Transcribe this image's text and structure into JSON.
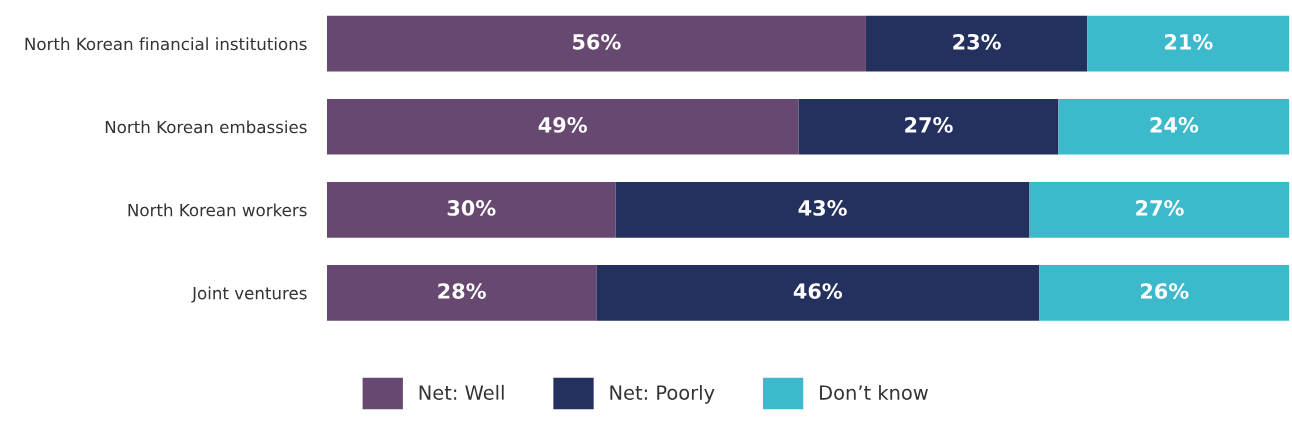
{
  "chart_data": {
    "type": "bar",
    "orientation": "horizontal",
    "stacked": true,
    "categories": [
      "North Korean financial institutions",
      "North Korean embassies",
      "North Korean workers",
      "Joint ventures"
    ],
    "series": [
      {
        "name": "Net: Well",
        "color": "#674870",
        "values": [
          56,
          49,
          30,
          28
        ],
        "value_labels": [
          "56%",
          "49%",
          "30%",
          "28%"
        ]
      },
      {
        "name": "Net: Poorly",
        "color": "#24305e",
        "values": [
          23,
          27,
          43,
          46
        ],
        "value_labels": [
          "23%",
          "27%",
          "43%",
          "46%"
        ]
      },
      {
        "name": "Don’t know",
        "color": "#3db9cc",
        "values": [
          21,
          24,
          27,
          26
        ],
        "value_labels": [
          "21%",
          "24%",
          "27%",
          "26%"
        ]
      }
    ],
    "xlim": [
      0,
      100
    ],
    "tick_labels": "y",
    "grid": false,
    "legend": "bottom"
  }
}
